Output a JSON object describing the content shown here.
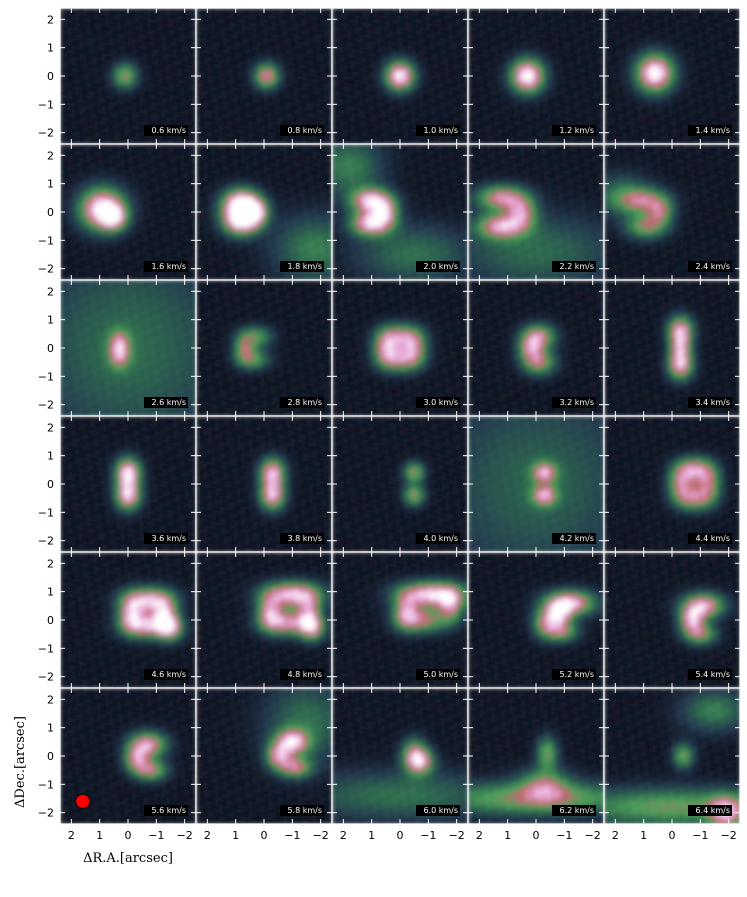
{
  "chart_data": {
    "type": "heatmap",
    "title": "",
    "xlabel": "ΔR.A.[arcsec]",
    "ylabel": "ΔDec.[arcsec]",
    "xlim": [
      2.4,
      -2.4
    ],
    "ylim": [
      -2.4,
      2.4
    ],
    "x_ticks": [
      2,
      1,
      0,
      -1,
      -2
    ],
    "y_ticks": [
      2,
      1,
      0,
      -1,
      -2
    ],
    "x_tick_labels": [
      "2",
      "1",
      "0",
      "−1",
      "−2"
    ],
    "y_tick_labels": [
      "2",
      "1",
      "0",
      "−1",
      "−2"
    ],
    "grid": false,
    "rows": 6,
    "cols": 5,
    "colormap": [
      "#0a0a14",
      "#24394f",
      "#2f6b50",
      "#4ea05a",
      "#c06a70",
      "#e8a8d8",
      "#ffffff"
    ],
    "beam": {
      "x": 1.6,
      "y": -1.6,
      "color": "#ff0000"
    },
    "channel_unit": "km/s",
    "channels": [
      {
        "label": "0.6 km/s",
        "velocity": 0.6,
        "blobs": [
          [
            0.1,
            0.0,
            0.3,
            0.3,
            0.55
          ]
        ]
      },
      {
        "label": "0.8 km/s",
        "velocity": 0.8,
        "blobs": [
          [
            -0.1,
            0.0,
            0.3,
            0.3,
            0.7
          ]
        ]
      },
      {
        "label": "1.0 km/s",
        "velocity": 1.0,
        "blobs": [
          [
            0.0,
            0.0,
            0.35,
            0.35,
            0.95
          ]
        ]
      },
      {
        "label": "1.2 km/s",
        "velocity": 1.2,
        "blobs": [
          [
            0.3,
            0.0,
            0.4,
            0.4,
            1.0
          ]
        ]
      },
      {
        "label": "1.4 km/s",
        "velocity": 1.4,
        "blobs": [
          [
            0.6,
            0.1,
            0.45,
            0.45,
            1.0
          ]
        ]
      },
      {
        "label": "1.6 km/s",
        "velocity": 1.6,
        "blobs": [
          [
            0.9,
            0.1,
            0.55,
            0.5,
            1.0
          ],
          [
            0.5,
            -0.2,
            0.3,
            0.3,
            0.6
          ]
        ]
      },
      {
        "label": "1.8 km/s",
        "velocity": 1.8,
        "blobs": [
          [
            0.8,
            0.3,
            0.45,
            0.35,
            1.0
          ],
          [
            0.8,
            -0.3,
            0.45,
            0.35,
            1.0
          ],
          [
            0.3,
            0.0,
            0.3,
            0.3,
            0.6
          ],
          [
            -1.8,
            -1.3,
            1.0,
            0.8,
            0.35
          ]
        ]
      },
      {
        "label": "2.0 km/s",
        "velocity": 2.0,
        "blobs": [
          [
            1.0,
            0.4,
            0.5,
            0.3,
            0.85
          ],
          [
            1.0,
            -0.4,
            0.5,
            0.3,
            0.85
          ],
          [
            0.5,
            0.0,
            0.3,
            0.3,
            0.5
          ],
          [
            1.8,
            1.6,
            0.8,
            0.7,
            0.35
          ],
          [
            -0.5,
            -1.5,
            1.4,
            0.7,
            0.3
          ]
        ]
      },
      {
        "label": "2.2 km/s",
        "velocity": 2.2,
        "blobs": [
          [
            1.2,
            0.5,
            0.6,
            0.3,
            0.7
          ],
          [
            1.2,
            -0.5,
            0.6,
            0.3,
            0.7
          ],
          [
            0.5,
            0.0,
            0.35,
            0.35,
            0.55
          ],
          [
            0.0,
            -1.4,
            2.0,
            0.9,
            0.28
          ]
        ]
      },
      {
        "label": "2.4 km/s",
        "velocity": 2.4,
        "blobs": [
          [
            1.0,
            0.4,
            0.6,
            0.3,
            0.55
          ],
          [
            0.9,
            -0.5,
            0.5,
            0.3,
            0.55
          ],
          [
            0.4,
            0.0,
            0.3,
            0.3,
            0.45
          ],
          [
            1.8,
            0.6,
            0.7,
            0.5,
            0.3
          ]
        ]
      },
      {
        "label": "2.6 km/s",
        "velocity": 2.6,
        "blobs": [
          [
            0.3,
            0.2,
            0.25,
            0.3,
            0.45
          ],
          [
            0.3,
            -0.3,
            0.25,
            0.3,
            0.45
          ],
          [
            0.0,
            0.0,
            2.6,
            2.6,
            0.28
          ]
        ]
      },
      {
        "label": "2.8 km/s",
        "velocity": 2.8,
        "blobs": [
          [
            0.3,
            0.4,
            0.4,
            0.25,
            0.45
          ],
          [
            0.4,
            -0.4,
            0.4,
            0.25,
            0.45
          ],
          [
            0.7,
            0.0,
            0.25,
            0.3,
            0.45
          ]
        ]
      },
      {
        "label": "3.0 km/s",
        "velocity": 3.0,
        "blobs": [
          [
            0.0,
            0.4,
            0.5,
            0.3,
            0.6
          ],
          [
            0.0,
            -0.4,
            0.5,
            0.3,
            0.6
          ],
          [
            0.5,
            0.0,
            0.3,
            0.4,
            0.55
          ],
          [
            -0.5,
            0.0,
            0.3,
            0.4,
            0.5
          ]
        ]
      },
      {
        "label": "3.2 km/s",
        "velocity": 3.2,
        "blobs": [
          [
            -0.1,
            0.4,
            0.4,
            0.3,
            0.65
          ],
          [
            -0.1,
            -0.5,
            0.4,
            0.3,
            0.6
          ],
          [
            0.2,
            0.0,
            0.3,
            0.3,
            0.5
          ]
        ]
      },
      {
        "label": "3.4 km/s",
        "velocity": 3.4,
        "blobs": [
          [
            -0.3,
            0.6,
            0.3,
            0.35,
            0.8
          ],
          [
            -0.3,
            -0.6,
            0.3,
            0.35,
            0.8
          ],
          [
            -0.3,
            0.0,
            0.25,
            0.3,
            0.5
          ]
        ]
      },
      {
        "label": "3.6 km/s",
        "velocity": 3.6,
        "blobs": [
          [
            0.0,
            0.4,
            0.3,
            0.35,
            0.9
          ],
          [
            0.0,
            -0.4,
            0.3,
            0.35,
            0.85
          ]
        ]
      },
      {
        "label": "3.8 km/s",
        "velocity": 3.8,
        "blobs": [
          [
            -0.3,
            0.4,
            0.3,
            0.35,
            0.8
          ],
          [
            -0.3,
            -0.4,
            0.3,
            0.35,
            0.8
          ]
        ]
      },
      {
        "label": "4.0 km/s",
        "velocity": 4.0,
        "blobs": [
          [
            -0.5,
            0.4,
            0.25,
            0.25,
            0.55
          ],
          [
            -0.5,
            -0.4,
            0.25,
            0.25,
            0.55
          ]
        ]
      },
      {
        "label": "4.2 km/s",
        "velocity": 4.2,
        "blobs": [
          [
            -0.3,
            0.4,
            0.3,
            0.25,
            0.6
          ],
          [
            -0.3,
            -0.4,
            0.3,
            0.25,
            0.6
          ],
          [
            0.0,
            0.0,
            2.6,
            2.6,
            0.25
          ]
        ]
      },
      {
        "label": "4.4 km/s",
        "velocity": 4.4,
        "blobs": [
          [
            -0.8,
            0.5,
            0.45,
            0.3,
            0.7
          ],
          [
            -0.8,
            -0.5,
            0.45,
            0.3,
            0.6
          ],
          [
            -0.3,
            0.0,
            0.3,
            0.4,
            0.55
          ],
          [
            -1.3,
            0.0,
            0.3,
            0.4,
            0.5
          ]
        ]
      },
      {
        "label": "4.6 km/s",
        "velocity": 4.6,
        "blobs": [
          [
            -0.7,
            0.7,
            0.6,
            0.3,
            0.8
          ],
          [
            -0.7,
            -0.2,
            0.6,
            0.3,
            0.75
          ],
          [
            -0.1,
            0.2,
            0.3,
            0.4,
            0.6
          ],
          [
            -1.3,
            0.2,
            0.3,
            0.4,
            0.6
          ],
          [
            -1.5,
            -0.3,
            0.3,
            0.3,
            0.55
          ]
        ]
      },
      {
        "label": "4.8 km/s",
        "velocity": 4.8,
        "blobs": [
          [
            -1.0,
            0.9,
            0.7,
            0.3,
            0.85
          ],
          [
            -0.8,
            -0.1,
            0.6,
            0.3,
            0.7
          ],
          [
            -0.2,
            0.3,
            0.3,
            0.4,
            0.6
          ],
          [
            -1.6,
            0.3,
            0.3,
            0.4,
            0.55
          ],
          [
            -1.7,
            -0.3,
            0.3,
            0.3,
            0.6
          ]
        ]
      },
      {
        "label": "5.0 km/s",
        "velocity": 5.0,
        "blobs": [
          [
            -1.1,
            0.9,
            0.8,
            0.3,
            0.9
          ],
          [
            -0.8,
            0.0,
            0.6,
            0.3,
            0.6
          ],
          [
            -0.2,
            0.3,
            0.3,
            0.4,
            0.55
          ],
          [
            -1.8,
            0.5,
            0.3,
            0.4,
            0.55
          ]
        ]
      },
      {
        "label": "5.2 km/s",
        "velocity": 5.2,
        "blobs": [
          [
            -1.2,
            0.6,
            0.6,
            0.3,
            0.85
          ],
          [
            -0.8,
            0.2,
            0.3,
            0.3,
            0.7
          ],
          [
            -0.9,
            -0.4,
            0.4,
            0.25,
            0.55
          ],
          [
            -0.3,
            -0.1,
            0.3,
            0.35,
            0.5
          ]
        ]
      },
      {
        "label": "5.4 km/s",
        "velocity": 5.4,
        "blobs": [
          [
            -1.1,
            0.5,
            0.5,
            0.3,
            0.8
          ],
          [
            -0.7,
            0.0,
            0.3,
            0.3,
            0.7
          ],
          [
            -1.0,
            -0.5,
            0.4,
            0.25,
            0.55
          ]
        ]
      },
      {
        "label": "5.6 km/s",
        "velocity": 5.6,
        "blobs": [
          [
            -0.7,
            0.4,
            0.45,
            0.3,
            0.75
          ],
          [
            -0.3,
            -0.1,
            0.3,
            0.3,
            0.6
          ],
          [
            -0.8,
            -0.5,
            0.4,
            0.25,
            0.6
          ]
        ]
      },
      {
        "label": "5.8 km/s",
        "velocity": 5.8,
        "blobs": [
          [
            -1.0,
            0.5,
            0.4,
            0.3,
            0.75
          ],
          [
            -0.5,
            0.0,
            0.3,
            0.3,
            0.6
          ],
          [
            -1.1,
            -0.4,
            0.4,
            0.25,
            0.6
          ],
          [
            -1.5,
            1.2,
            1.0,
            1.0,
            0.3
          ]
        ]
      },
      {
        "label": "6.0 km/s",
        "velocity": 6.0,
        "blobs": [
          [
            -0.5,
            0.0,
            0.3,
            0.4,
            0.65
          ],
          [
            -0.8,
            -0.2,
            0.3,
            0.3,
            0.5
          ],
          [
            0.0,
            -1.4,
            2.6,
            0.6,
            0.3
          ]
        ]
      },
      {
        "label": "6.2 km/s",
        "velocity": 6.2,
        "blobs": [
          [
            0.0,
            -1.5,
            2.6,
            0.4,
            0.55
          ],
          [
            -0.4,
            0.1,
            0.25,
            0.4,
            0.5
          ],
          [
            -0.3,
            -1.0,
            0.6,
            0.4,
            0.45
          ]
        ]
      },
      {
        "label": "6.4 km/s",
        "velocity": 6.4,
        "blobs": [
          [
            0.0,
            -1.8,
            2.6,
            0.45,
            0.5
          ],
          [
            -1.9,
            -2.0,
            0.4,
            0.4,
            0.6
          ],
          [
            -0.4,
            0.0,
            0.25,
            0.3,
            0.5
          ],
          [
            -1.5,
            1.6,
            0.8,
            0.5,
            0.35
          ]
        ]
      }
    ]
  }
}
